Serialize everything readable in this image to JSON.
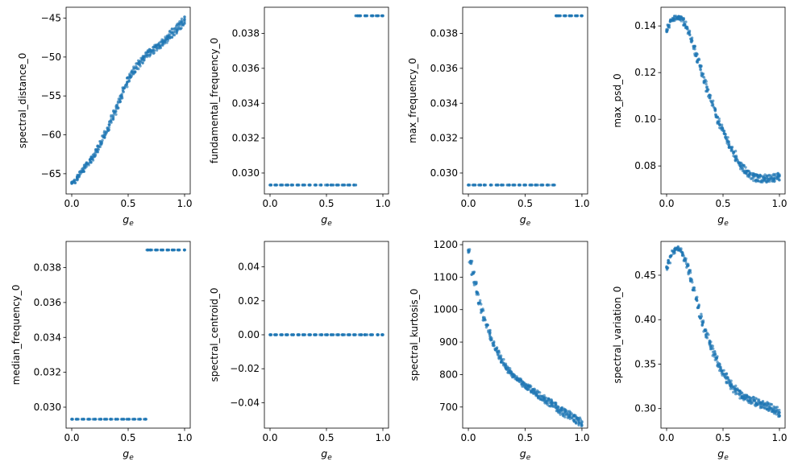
{
  "figure": {
    "point_color": "#1f77b4",
    "x_label_base": "g",
    "x_label_sub": "e"
  },
  "chart_data": [
    {
      "type": "scatter",
      "ylabel": "spectral_distance_0",
      "xlim": [
        -0.05,
        1.05
      ],
      "ylim": [
        -67.6,
        -43.6
      ],
      "x_ticks": [
        0.0,
        0.5,
        1.0
      ],
      "x_tick_labels": [
        "0.0",
        "0.5",
        "1.0"
      ],
      "y_ticks": [
        -65,
        -60,
        -55,
        -50,
        -45
      ],
      "y_tick_labels": [
        "−65",
        "−60",
        "−55",
        "−50",
        "−45"
      ],
      "series": [
        {
          "x": [
            0.0,
            0.02,
            0.04,
            0.06,
            0.08,
            0.1,
            0.12,
            0.14,
            0.16,
            0.18,
            0.2,
            0.22,
            0.24,
            0.26,
            0.28,
            0.3,
            0.32,
            0.34,
            0.36,
            0.38,
            0.4,
            0.42,
            0.44,
            0.46,
            0.48,
            0.5,
            0.52,
            0.54,
            0.56,
            0.58,
            0.6,
            0.62,
            0.64,
            0.66,
            0.68,
            0.7,
            0.72,
            0.74,
            0.76,
            0.78,
            0.8,
            0.82,
            0.84,
            0.86,
            0.88,
            0.9,
            0.92,
            0.94,
            0.96,
            0.98,
            1.0
          ],
          "y": [
            -66.2,
            -66.0,
            -65.6,
            -65.2,
            -64.9,
            -64.5,
            -64.1,
            -63.7,
            -63.3,
            -63.0,
            -62.6,
            -62.1,
            -61.6,
            -61.0,
            -60.4,
            -59.8,
            -59.2,
            -58.5,
            -57.8,
            -57.1,
            -56.4,
            -55.7,
            -55.0,
            -54.3,
            -53.6,
            -53.0,
            -52.5,
            -52.0,
            -51.6,
            -51.2,
            -50.8,
            -50.4,
            -50.1,
            -49.8,
            -49.5,
            -49.3,
            -49.1,
            -48.9,
            -48.7,
            -48.5,
            -48.2,
            -48.0,
            -47.7,
            -47.4,
            -47.1,
            -46.8,
            -46.5,
            -46.2,
            -45.9,
            -45.5,
            -45.2
          ]
        }
      ]
    },
    {
      "type": "scatter",
      "ylabel": "fundamental_frequency_0",
      "xlim": [
        -0.05,
        1.05
      ],
      "ylim": [
        0.0288,
        0.0395
      ],
      "x_ticks": [
        0.0,
        0.5,
        1.0
      ],
      "x_tick_labels": [
        "0.0",
        "0.5",
        "1.0"
      ],
      "y_ticks": [
        0.03,
        0.032,
        0.034,
        0.036,
        0.038
      ],
      "y_tick_labels": [
        "0.030",
        "0.032",
        "0.034",
        "0.036",
        "0.038"
      ],
      "series": [
        {
          "x": [
            0.0,
            0.05,
            0.1,
            0.15,
            0.2,
            0.25,
            0.3,
            0.35,
            0.4,
            0.45,
            0.5,
            0.55,
            0.6,
            0.65,
            0.7,
            0.75,
            0.77,
            0.8,
            0.85,
            0.9,
            0.95,
            1.0
          ],
          "y": [
            0.02931,
            0.02931,
            0.02931,
            0.02931,
            0.02931,
            0.02931,
            0.02931,
            0.02931,
            0.02931,
            0.02931,
            0.02931,
            0.02931,
            0.02931,
            0.02931,
            0.02931,
            0.02931,
            0.03901,
            0.03901,
            0.03901,
            0.03901,
            0.03901,
            0.03901
          ]
        }
      ]
    },
    {
      "type": "scatter",
      "ylabel": "max_frequency_0",
      "xlim": [
        -0.05,
        1.05
      ],
      "ylim": [
        0.0288,
        0.0395
      ],
      "x_ticks": [
        0.0,
        0.5,
        1.0
      ],
      "x_tick_labels": [
        "0.0",
        "0.5",
        "1.0"
      ],
      "y_ticks": [
        0.03,
        0.032,
        0.034,
        0.036,
        0.038
      ],
      "y_tick_labels": [
        "0.030",
        "0.032",
        "0.034",
        "0.036",
        "0.038"
      ],
      "series": [
        {
          "x": [
            0.0,
            0.05,
            0.1,
            0.15,
            0.2,
            0.25,
            0.3,
            0.35,
            0.4,
            0.45,
            0.5,
            0.55,
            0.6,
            0.65,
            0.7,
            0.75,
            0.77,
            0.8,
            0.85,
            0.9,
            0.95,
            1.0
          ],
          "y": [
            0.02931,
            0.02931,
            0.02931,
            0.02931,
            0.02931,
            0.02931,
            0.02931,
            0.02931,
            0.02931,
            0.02931,
            0.02931,
            0.02931,
            0.02931,
            0.02931,
            0.02931,
            0.02931,
            0.03901,
            0.03901,
            0.03901,
            0.03901,
            0.03901,
            0.03901
          ]
        }
      ]
    },
    {
      "type": "scatter",
      "ylabel": "max_psd_0",
      "xlim": [
        -0.05,
        1.05
      ],
      "ylim": [
        0.068,
        0.148
      ],
      "x_ticks": [
        0.0,
        0.5,
        1.0
      ],
      "x_tick_labels": [
        "0.0",
        "0.5",
        "1.0"
      ],
      "y_ticks": [
        0.08,
        0.1,
        0.12,
        0.14
      ],
      "y_tick_labels": [
        "0.08",
        "0.10",
        "0.12",
        "0.14"
      ],
      "series": [
        {
          "x": [
            0.0,
            0.02,
            0.04,
            0.06,
            0.08,
            0.1,
            0.12,
            0.14,
            0.16,
            0.18,
            0.2,
            0.22,
            0.24,
            0.26,
            0.28,
            0.3,
            0.32,
            0.34,
            0.36,
            0.38,
            0.4,
            0.42,
            0.44,
            0.46,
            0.48,
            0.5,
            0.52,
            0.54,
            0.56,
            0.58,
            0.6,
            0.62,
            0.64,
            0.66,
            0.68,
            0.7,
            0.72,
            0.74,
            0.76,
            0.78,
            0.8,
            0.82,
            0.84,
            0.86,
            0.88,
            0.9,
            0.92,
            0.94,
            0.96,
            0.98,
            1.0
          ],
          "y": [
            0.138,
            0.14,
            0.142,
            0.143,
            0.1435,
            0.1437,
            0.1435,
            0.143,
            0.141,
            0.139,
            0.137,
            0.134,
            0.131,
            0.128,
            0.125,
            0.122,
            0.119,
            0.116,
            0.113,
            0.11,
            0.107,
            0.104,
            0.101,
            0.099,
            0.097,
            0.095,
            0.093,
            0.091,
            0.089,
            0.087,
            0.085,
            0.083,
            0.081,
            0.08,
            0.079,
            0.078,
            0.077,
            0.076,
            0.0755,
            0.075,
            0.0748,
            0.0746,
            0.0745,
            0.0745,
            0.0746,
            0.0747,
            0.0748,
            0.0749,
            0.075,
            0.0751,
            0.0752
          ]
        }
      ]
    },
    {
      "type": "scatter",
      "ylabel": "median_frequency_0",
      "xlim": [
        -0.05,
        1.05
      ],
      "ylim": [
        0.0288,
        0.0395
      ],
      "x_ticks": [
        0.0,
        0.5,
        1.0
      ],
      "x_tick_labels": [
        "0.0",
        "0.5",
        "1.0"
      ],
      "y_ticks": [
        0.03,
        0.032,
        0.034,
        0.036,
        0.038
      ],
      "y_tick_labels": [
        "0.030",
        "0.032",
        "0.034",
        "0.036",
        "0.038"
      ],
      "series": [
        {
          "x": [
            0.0,
            0.05,
            0.1,
            0.15,
            0.2,
            0.25,
            0.3,
            0.35,
            0.4,
            0.45,
            0.5,
            0.55,
            0.6,
            0.65,
            0.67,
            0.7,
            0.75,
            0.8,
            0.85,
            0.9,
            0.95,
            1.0
          ],
          "y": [
            0.02931,
            0.02931,
            0.02931,
            0.02931,
            0.02931,
            0.02931,
            0.02931,
            0.02931,
            0.02931,
            0.02931,
            0.02931,
            0.02931,
            0.02931,
            0.02931,
            0.03901,
            0.03901,
            0.03901,
            0.03901,
            0.03901,
            0.03901,
            0.03901,
            0.03901
          ]
        }
      ]
    },
    {
      "type": "scatter",
      "ylabel": "spectral_centroid_0",
      "xlim": [
        -0.05,
        1.05
      ],
      "ylim": [
        -0.055,
        0.055
      ],
      "x_ticks": [
        0.0,
        0.5,
        1.0
      ],
      "x_tick_labels": [
        "0.0",
        "0.5",
        "1.0"
      ],
      "y_ticks": [
        -0.04,
        -0.02,
        0.0,
        0.02,
        0.04
      ],
      "y_tick_labels": [
        "−0.04",
        "−0.02",
        "0.00",
        "0.02",
        "0.04"
      ],
      "series": [
        {
          "x": [
            0.0,
            0.05,
            0.1,
            0.15,
            0.2,
            0.25,
            0.3,
            0.35,
            0.4,
            0.45,
            0.5,
            0.55,
            0.6,
            0.65,
            0.7,
            0.75,
            0.8,
            0.85,
            0.9,
            0.95,
            1.0
          ],
          "y": [
            0,
            0,
            0,
            0,
            0,
            0,
            0,
            0,
            0,
            0,
            0,
            0,
            0,
            0,
            0,
            0,
            0,
            0,
            0,
            0,
            0
          ]
        }
      ]
    },
    {
      "type": "scatter",
      "ylabel": "spectral_kurtosis_0",
      "xlim": [
        -0.05,
        1.05
      ],
      "ylim": [
        635,
        1210
      ],
      "x_ticks": [
        0.0,
        0.5,
        1.0
      ],
      "x_tick_labels": [
        "0.0",
        "0.5",
        "1.0"
      ],
      "y_ticks": [
        700,
        800,
        900,
        1000,
        1100,
        1200
      ],
      "y_tick_labels": [
        "700",
        "800",
        "900",
        "1000",
        "1100",
        "1200"
      ],
      "series": [
        {
          "x": [
            0.0,
            0.02,
            0.04,
            0.06,
            0.08,
            0.1,
            0.12,
            0.14,
            0.16,
            0.18,
            0.2,
            0.22,
            0.24,
            0.26,
            0.28,
            0.3,
            0.32,
            0.34,
            0.36,
            0.38,
            0.4,
            0.42,
            0.44,
            0.46,
            0.48,
            0.5,
            0.52,
            0.54,
            0.56,
            0.58,
            0.6,
            0.62,
            0.64,
            0.66,
            0.68,
            0.7,
            0.72,
            0.74,
            0.76,
            0.78,
            0.8,
            0.82,
            0.84,
            0.86,
            0.88,
            0.9,
            0.92,
            0.94,
            0.96,
            0.98,
            1.0
          ],
          "y": [
            1180,
            1145,
            1112,
            1080,
            1050,
            1022,
            996,
            972,
            950,
            930,
            912,
            895,
            880,
            866,
            853,
            841,
            830,
            820,
            811,
            803,
            796,
            790,
            784,
            778,
            772,
            767,
            762,
            757,
            752,
            747,
            742,
            737,
            732,
            727,
            722,
            717,
            712,
            707,
            702,
            697,
            692,
            688,
            684,
            680,
            676,
            672,
            668,
            664,
            660,
            657,
            654
          ]
        }
      ]
    },
    {
      "type": "scatter",
      "ylabel": "spectral_variation_0",
      "xlim": [
        -0.05,
        1.05
      ],
      "ylim": [
        0.278,
        0.488
      ],
      "x_ticks": [
        0.0,
        0.5,
        1.0
      ],
      "x_tick_labels": [
        "0.0",
        "0.5",
        "1.0"
      ],
      "y_ticks": [
        0.3,
        0.35,
        0.4,
        0.45
      ],
      "y_tick_labels": [
        "0.30",
        "0.35",
        "0.40",
        "0.45"
      ],
      "series": [
        {
          "x": [
            0.0,
            0.02,
            0.04,
            0.06,
            0.08,
            0.1,
            0.12,
            0.14,
            0.16,
            0.18,
            0.2,
            0.22,
            0.24,
            0.26,
            0.28,
            0.3,
            0.32,
            0.34,
            0.36,
            0.38,
            0.4,
            0.42,
            0.44,
            0.46,
            0.48,
            0.5,
            0.52,
            0.54,
            0.56,
            0.58,
            0.6,
            0.62,
            0.64,
            0.66,
            0.68,
            0.7,
            0.72,
            0.74,
            0.76,
            0.78,
            0.8,
            0.82,
            0.84,
            0.86,
            0.88,
            0.9,
            0.92,
            0.94,
            0.96,
            0.98,
            1.0
          ],
          "y": [
            0.458,
            0.465,
            0.471,
            0.476,
            0.479,
            0.48,
            0.478,
            0.474,
            0.468,
            0.461,
            0.453,
            0.444,
            0.434,
            0.424,
            0.414,
            0.404,
            0.396,
            0.389,
            0.382,
            0.375,
            0.368,
            0.362,
            0.356,
            0.35,
            0.345,
            0.34,
            0.336,
            0.332,
            0.328,
            0.325,
            0.322,
            0.319,
            0.317,
            0.315,
            0.313,
            0.312,
            0.311,
            0.31,
            0.309,
            0.308,
            0.307,
            0.306,
            0.305,
            0.304,
            0.303,
            0.302,
            0.301,
            0.3,
            0.299,
            0.297,
            0.295
          ]
        }
      ]
    }
  ]
}
